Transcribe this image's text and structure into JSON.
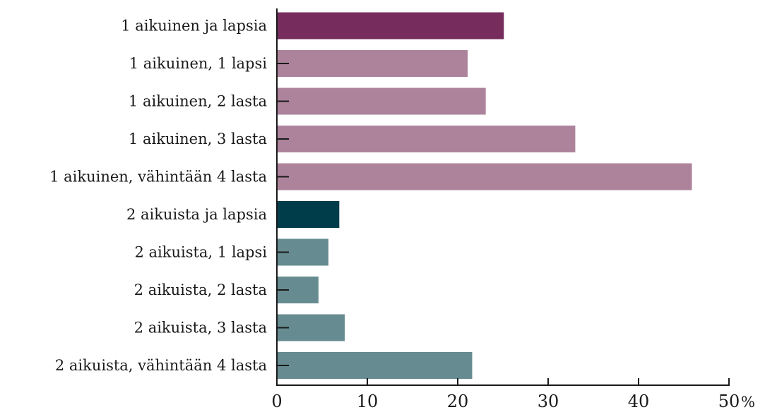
{
  "chart_data": {
    "type": "bar",
    "orientation": "horizontal",
    "categories": [
      "1 aikuinen ja lapsia",
      "1 aikuinen, 1 lapsi",
      "1 aikuinen, 2 lasta",
      "1 aikuinen, 3 lasta",
      "1 aikuinen, vähintään 4 lasta",
      "2 aikuista ja lapsia",
      "2 aikuista, 1 lapsi",
      "2 aikuista, 2 lasta",
      "2 aikuista, 3 lasta",
      "2 aikuista, vähintään 4 lasta"
    ],
    "values": [
      25.1,
      21.1,
      23.1,
      33.0,
      45.9,
      6.9,
      5.7,
      4.6,
      7.5,
      21.6
    ],
    "emphasized": [
      true,
      false,
      false,
      false,
      false,
      true,
      false,
      false,
      false,
      false
    ],
    "colors": [
      "#762d5d",
      "#ad839b",
      "#ad839b",
      "#ad839b",
      "#ad839b",
      "#003d4b",
      "#668c91",
      "#668c91",
      "#668c91",
      "#668c91"
    ],
    "xlim": [
      0,
      50
    ],
    "xticks": [
      0,
      10,
      20,
      30,
      40,
      50
    ],
    "xunit": "%",
    "title": "",
    "xlabel": "",
    "ylabel": "",
    "grid": false,
    "legend": false
  }
}
